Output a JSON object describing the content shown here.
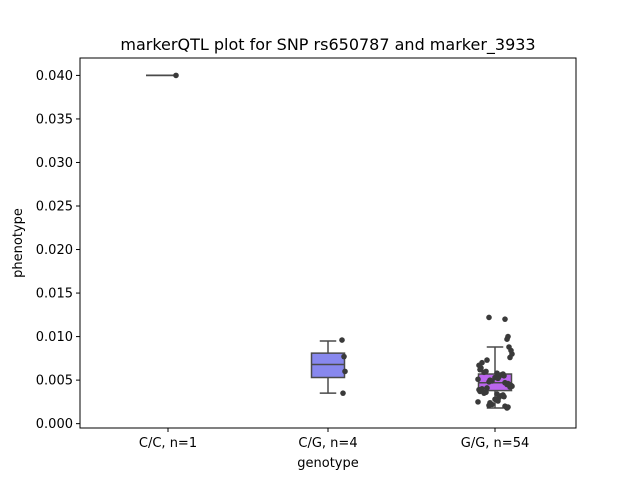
{
  "chart_data": {
    "type": "box",
    "title": "markerQTL plot for SNP rs650787 and marker_3933",
    "xlabel": "genotype",
    "ylabel": "phenotype",
    "ylim": [
      -0.0005,
      0.042
    ],
    "yticks": [
      "0.000",
      "0.005",
      "0.010",
      "0.015",
      "0.020",
      "0.025",
      "0.030",
      "0.035",
      "0.040"
    ],
    "categories": [
      "C/C, n=1",
      "C/G, n=4",
      "G/G, n=54"
    ],
    "colors": {
      "C/G": "#8888ee",
      "G/G": "#bb66ee",
      "points": "#3a3a3a",
      "whisker": "#4a4a4a"
    },
    "boxes": [
      {
        "q1": 0.04,
        "median": 0.04,
        "q3": 0.04,
        "whislo": 0.04,
        "whishi": 0.04
      },
      {
        "q1": 0.0053,
        "median": 0.0068,
        "q3": 0.0081,
        "whislo": 0.0035,
        "whishi": 0.0095
      },
      {
        "q1": 0.0038,
        "median": 0.0047,
        "q3": 0.0057,
        "whislo": 0.0018,
        "whishi": 0.0088
      }
    ],
    "points": [
      [
        0.04
      ],
      [
        0.0035,
        0.006,
        0.0077,
        0.0096
      ],
      [
        0.0018,
        0.0019,
        0.002,
        0.0021,
        0.0022,
        0.0024,
        0.0025,
        0.0026,
        0.0028,
        0.003,
        0.0031,
        0.0032,
        0.0033,
        0.0034,
        0.0035,
        0.0036,
        0.0037,
        0.0038,
        0.0039,
        0.004,
        0.0041,
        0.0042,
        0.0043,
        0.0044,
        0.0045,
        0.0045,
        0.0046,
        0.0047,
        0.0048,
        0.0049,
        0.005,
        0.0051,
        0.0052,
        0.0053,
        0.0054,
        0.0055,
        0.0056,
        0.0057,
        0.0058,
        0.0059,
        0.006,
        0.0062,
        0.0064,
        0.0067,
        0.007,
        0.0073,
        0.0076,
        0.008,
        0.0084,
        0.0088,
        0.0097,
        0.01,
        0.012,
        0.0122
      ]
    ]
  }
}
